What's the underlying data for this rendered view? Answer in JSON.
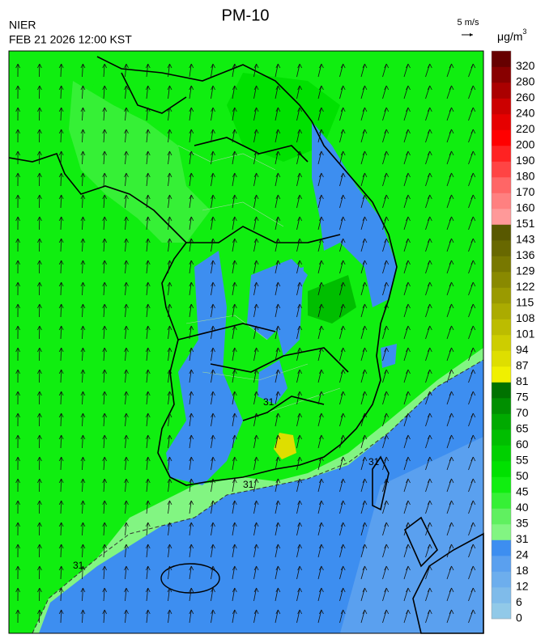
{
  "header": {
    "title": "PM-10",
    "agency": "NIER",
    "datetime": "FEB 21 2026 12:00 KST",
    "wind_scale": "5 m/s"
  },
  "map": {
    "contour_label": "31"
  },
  "legend": {
    "unit": "μg/m",
    "unit_sup": "3",
    "ticks": [
      0,
      6,
      12,
      18,
      24,
      31,
      35,
      40,
      45,
      50,
      55,
      60,
      65,
      70,
      75,
      81,
      87,
      94,
      101,
      108,
      115,
      122,
      129,
      136,
      143,
      151,
      160,
      170,
      180,
      190,
      200,
      220,
      240,
      260,
      280,
      320
    ],
    "colors": [
      "#91c9e8",
      "#7fbbea",
      "#6daeed",
      "#5aa0ef",
      "#3d8ef0",
      "#82f582",
      "#60f060",
      "#36f036",
      "#10ee10",
      "#00e100",
      "#00d000",
      "#00be00",
      "#00aa00",
      "#008f00",
      "#007200",
      "#f0f000",
      "#dede00",
      "#cdcd00",
      "#bcbc00",
      "#abab00",
      "#9a9a00",
      "#898900",
      "#787800",
      "#686800",
      "#585800",
      "#ff9999",
      "#ff8080",
      "#ff6666",
      "#ff4444",
      "#ff2222",
      "#ff0000",
      "#e60000",
      "#cc0000",
      "#aa0000",
      "#880000",
      "#660000"
    ]
  }
}
